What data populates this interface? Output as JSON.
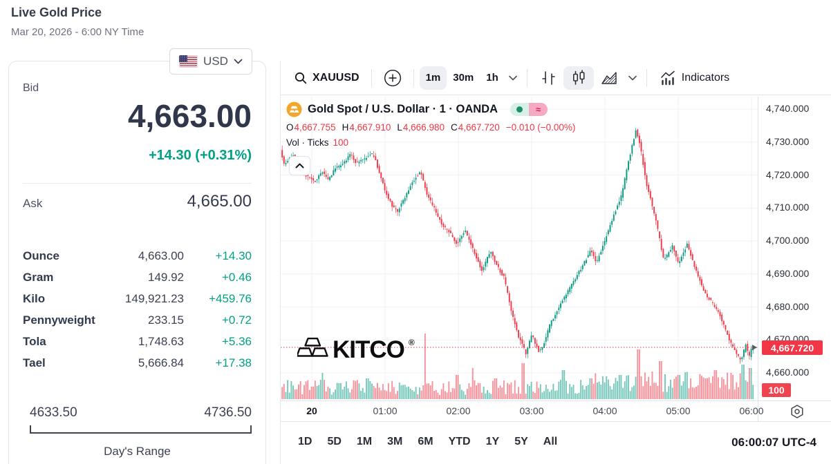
{
  "header": {
    "title": "Live Gold Price",
    "date": "Mar 20, 2026 - 6:00 NY Time"
  },
  "currency": {
    "selected": "USD",
    "flag_icon": "us-flag-icon",
    "chevron_icon": "chevron-down-icon"
  },
  "quote": {
    "bid_label": "Bid",
    "bid": "4,663.00",
    "change": "+14.30 (+0.31%)",
    "ask_label": "Ask",
    "ask": "4,665.00",
    "units": [
      {
        "name": "Ounce",
        "value": "4,663.00",
        "change": "+14.30"
      },
      {
        "name": "Gram",
        "value": "149.92",
        "change": "+0.46"
      },
      {
        "name": "Kilo",
        "value": "149,921.23",
        "change": "+459.76"
      },
      {
        "name": "Pennyweight",
        "value": "233.15",
        "change": "+0.72"
      },
      {
        "name": "Tola",
        "value": "1,748.63",
        "change": "+5.36"
      },
      {
        "name": "Tael",
        "value": "5,666.84",
        "change": "+17.38"
      }
    ],
    "range": {
      "low": "4633.50",
      "high": "4736.50",
      "label": "Day's Range"
    },
    "accent_color": "#00a184"
  },
  "toolbar": {
    "symbol": "XAUUSD",
    "search_icon": "search-icon",
    "add_icon": "plus-circle-icon",
    "intervals": [
      {
        "label": "1m",
        "active": true
      },
      {
        "label": "30m",
        "active": false
      },
      {
        "label": "1h",
        "active": false
      }
    ],
    "style_icons": [
      "bars-chart-icon",
      "candles-chart-icon",
      "area-chart-icon"
    ],
    "active_style": "candles-chart-icon",
    "indicators_label": "Indicators",
    "indicators_icon": "indicators-icon"
  },
  "legend": {
    "coin_icon": "gold-coin-icon",
    "title": "Gold Spot / U.S. Dollar · 1 · OANDA",
    "market_status_icon": "market-open-dot-icon",
    "delayed_icon": "approx-delay-icon",
    "ohlc": [
      {
        "k": "O",
        "v": "4,667.755"
      },
      {
        "k": "H",
        "v": "4,667.910"
      },
      {
        "k": "L",
        "v": "4,666.980"
      },
      {
        "k": "C",
        "v": "4,667.720"
      }
    ],
    "change": "−0.010 (−0.00%)",
    "vol_label": "Vol · Ticks",
    "vol_value": "100",
    "collapse_icon": "chevron-up-icon"
  },
  "watermark": {
    "text": "KITCO",
    "reg": "®",
    "logo_icon": "gold-bars-icon"
  },
  "bottom_bar": {
    "ranges": [
      "1D",
      "5D",
      "1M",
      "3M",
      "6M",
      "YTD",
      "1Y",
      "5Y",
      "All"
    ],
    "clock": "06:00:07 UTC-4"
  },
  "axis_gear_icon": "gear-icon",
  "chart_data": {
    "type": "candlestick",
    "symbol": "XAUUSD",
    "title": "Gold Spot / U.S. Dollar · 1 · OANDA",
    "exchange": "OANDA",
    "interval_minutes": 1,
    "y_axis": {
      "ticks": [
        "4,740.000",
        "4,730.000",
        "4,720.000",
        "4,710.000",
        "4,700.000",
        "4,690.000",
        "4,680.000",
        "4,670.000",
        "4,660.000"
      ],
      "tick_values": [
        4740,
        4730,
        4720,
        4710,
        4700,
        4690,
        4680,
        4670,
        4660
      ]
    },
    "x_axis": {
      "labels": [
        "20",
        "01:00",
        "02:00",
        "03:00",
        "04:00",
        "05:00",
        "06:00"
      ],
      "label_minutes": [
        0,
        60,
        120,
        180,
        240,
        300,
        360
      ]
    },
    "last_price": 4667.72,
    "last_price_label": "4,667.720",
    "volume_label": "100",
    "open": 4667.755,
    "high": 4667.91,
    "low": 4666.98,
    "close": 4667.72,
    "change": -0.01,
    "change_pct": "-0.00%",
    "price_path": [
      [
        -25,
        4728
      ],
      [
        -22,
        4723.5
      ],
      [
        -14,
        4726
      ],
      [
        -9,
        4722
      ],
      [
        -3,
        4719.5
      ],
      [
        4,
        4718
      ],
      [
        9,
        4721
      ],
      [
        14,
        4718.5
      ],
      [
        20,
        4722
      ],
      [
        28,
        4724
      ],
      [
        33,
        4726.5
      ],
      [
        37,
        4723.5
      ],
      [
        44,
        4725
      ],
      [
        51,
        4726.5
      ],
      [
        55,
        4722
      ],
      [
        60,
        4716
      ],
      [
        66,
        4711
      ],
      [
        71,
        4709
      ],
      [
        78,
        4714
      ],
      [
        85,
        4719
      ],
      [
        90,
        4721
      ],
      [
        95,
        4714
      ],
      [
        101,
        4710
      ],
      [
        107,
        4705
      ],
      [
        113,
        4703
      ],
      [
        120,
        4699
      ],
      [
        126,
        4703.5
      ],
      [
        133,
        4697
      ],
      [
        140,
        4691
      ],
      [
        147,
        4697
      ],
      [
        153,
        4692
      ],
      [
        158,
        4689
      ],
      [
        164,
        4679
      ],
      [
        170,
        4671
      ],
      [
        176,
        4666
      ],
      [
        181,
        4671.5
      ],
      [
        187,
        4666
      ],
      [
        191,
        4669
      ],
      [
        196,
        4675
      ],
      [
        204,
        4680.5
      ],
      [
        213,
        4686.5
      ],
      [
        221,
        4691.5
      ],
      [
        229,
        4697
      ],
      [
        234,
        4693.5
      ],
      [
        240,
        4699.5
      ],
      [
        247,
        4707
      ],
      [
        254,
        4713.5
      ],
      [
        260,
        4724
      ],
      [
        266,
        4733.5
      ],
      [
        269,
        4730
      ],
      [
        275,
        4717
      ],
      [
        282,
        4707
      ],
      [
        289,
        4694
      ],
      [
        296,
        4698.5
      ],
      [
        301,
        4693
      ],
      [
        308,
        4699
      ],
      [
        315,
        4691.5
      ],
      [
        322,
        4684.5
      ],
      [
        328,
        4681.5
      ],
      [
        335,
        4677.5
      ],
      [
        342,
        4670.5
      ],
      [
        349,
        4665.5
      ],
      [
        352,
        4663.5
      ],
      [
        356,
        4668.5
      ],
      [
        359,
        4665
      ],
      [
        361,
        4667.7
      ]
    ],
    "volume_spikes": [
      [
        8,
        0.38
      ],
      [
        45,
        0.3
      ],
      [
        92,
        0.95
      ],
      [
        118,
        0.35
      ],
      [
        131,
        0.45
      ],
      [
        150,
        0.3
      ],
      [
        172,
        0.52
      ],
      [
        205,
        0.42
      ],
      [
        228,
        0.3
      ],
      [
        252,
        0.35
      ],
      [
        267,
        0.72
      ],
      [
        278,
        0.4
      ],
      [
        285,
        0.55
      ],
      [
        300,
        0.35
      ],
      [
        322,
        0.3
      ],
      [
        330,
        0.42
      ],
      [
        344,
        0.35
      ],
      [
        352,
        0.5
      ],
      [
        358,
        0.45
      ]
    ],
    "colors": {
      "up": "#089981",
      "down": "#f23645",
      "grid": "#f0f2f6",
      "last_line": "#f23645",
      "badge": "#f23645"
    }
  }
}
